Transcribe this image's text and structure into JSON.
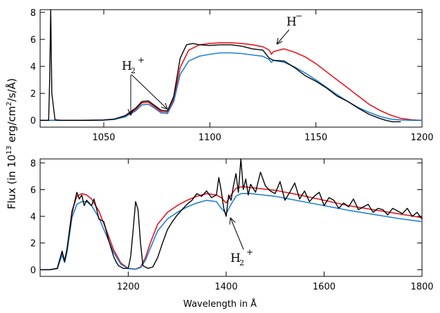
{
  "figure": {
    "ylabel_main": "Flux (in 10",
    "ylabel_exp": "13",
    "ylabel_unit_a": " erg/cm",
    "ylabel_unit_exp": "2",
    "ylabel_unit_b": "/s/Å)",
    "xlabel": "Wavelength in Å"
  },
  "colors": {
    "observed": "#000000",
    "blue_model": "#1f7fd1",
    "red_model": "#e8141e"
  },
  "chart_data": [
    {
      "type": "line",
      "panel": "top",
      "xlim": [
        1020,
        1200
      ],
      "ylim": [
        -0.5,
        8.2
      ],
      "xticks": [
        1050,
        1100,
        1150,
        1200
      ],
      "yticks": [
        0,
        2,
        4,
        6,
        8
      ],
      "grid": false,
      "series": [
        {
          "color": "red",
          "x": [
            1020,
            1040,
            1050,
            1055,
            1060,
            1065,
            1068,
            1071,
            1074,
            1077,
            1080,
            1083,
            1086,
            1090,
            1095,
            1100,
            1105,
            1110,
            1115,
            1120,
            1125,
            1128,
            1129,
            1130,
            1135,
            1140,
            1145,
            1150,
            1155,
            1160,
            1165,
            1170,
            1175,
            1180,
            1185,
            1190,
            1195,
            1200
          ],
          "y": [
            0.0,
            0.0,
            0.02,
            0.08,
            0.3,
            0.8,
            1.3,
            1.35,
            1.0,
            0.65,
            0.6,
            1.6,
            3.9,
            5.2,
            5.6,
            5.7,
            5.75,
            5.75,
            5.7,
            5.6,
            5.45,
            5.2,
            4.9,
            5.1,
            5.3,
            5.05,
            4.7,
            4.2,
            3.6,
            3.0,
            2.4,
            1.8,
            1.2,
            0.75,
            0.4,
            0.15,
            0.05,
            0.0
          ]
        },
        {
          "color": "blue",
          "x": [
            1020,
            1040,
            1050,
            1055,
            1060,
            1065,
            1068,
            1071,
            1074,
            1077,
            1080,
            1083,
            1086,
            1090,
            1095,
            1100,
            1105,
            1110,
            1115,
            1120,
            1125,
            1128,
            1129,
            1130,
            1135,
            1140,
            1145,
            1150,
            1155,
            1160,
            1165,
            1170,
            1175,
            1180,
            1185,
            1190,
            1195,
            1200
          ],
          "y": [
            0.0,
            0.0,
            0.02,
            0.07,
            0.25,
            0.7,
            1.15,
            1.2,
            0.9,
            0.55,
            0.5,
            1.4,
            3.4,
            4.4,
            4.75,
            4.9,
            5.0,
            5.0,
            4.95,
            4.85,
            4.75,
            4.5,
            4.3,
            4.45,
            4.3,
            3.95,
            3.5,
            3.0,
            2.45,
            1.9,
            1.4,
            0.95,
            0.6,
            0.3,
            0.1,
            0.03,
            0.0,
            0.0
          ]
        },
        {
          "color": "black",
          "x": [
            1020,
            1024,
            1024.5,
            1025,
            1025.5,
            1027,
            1030,
            1040,
            1050,
            1055,
            1060,
            1065,
            1068,
            1071,
            1074,
            1077,
            1080,
            1083,
            1086,
            1089,
            1092,
            1095,
            1100,
            1105,
            1110,
            1115,
            1120,
            1125,
            1128,
            1130,
            1135,
            1140,
            1145,
            1150,
            1155,
            1160,
            1165,
            1170,
            1175,
            1180,
            1183,
            1186,
            1190
          ],
          "y": [
            0.0,
            0.0,
            3.0,
            8.2,
            2.0,
            0.05,
            0.0,
            0.0,
            0.03,
            0.1,
            0.35,
            0.9,
            1.4,
            1.45,
            1.1,
            0.75,
            0.7,
            1.8,
            4.6,
            5.6,
            5.7,
            5.6,
            5.55,
            5.6,
            5.6,
            5.5,
            5.3,
            5.2,
            4.6,
            4.45,
            4.4,
            3.9,
            3.3,
            2.9,
            2.4,
            1.8,
            1.4,
            0.9,
            0.45,
            0.15,
            0.0,
            -0.1,
            -0.1
          ]
        }
      ],
      "annotations": [
        {
          "text": "H",
          "sup": "−",
          "x": 1130,
          "y": 7.2
        },
        {
          "text": "H",
          "sub": "2",
          "sup": "+",
          "x": 1058,
          "y": 3.85
        }
      ]
    },
    {
      "type": "line",
      "panel": "bottom",
      "xlim": [
        1020,
        1800
      ],
      "ylim": [
        -0.5,
        8.3
      ],
      "xticks": [
        1200,
        1400,
        1600,
        1800
      ],
      "yticks": [
        0,
        2,
        4,
        6,
        8
      ],
      "grid": false,
      "series": [
        {
          "color": "red",
          "x": [
            1020,
            1040,
            1055,
            1065,
            1070,
            1075,
            1085,
            1095,
            1105,
            1115,
            1125,
            1140,
            1155,
            1170,
            1185,
            1200,
            1215,
            1225,
            1235,
            1245,
            1260,
            1280,
            1300,
            1320,
            1340,
            1360,
            1380,
            1390,
            1400,
            1410,
            1420,
            1430,
            1440,
            1450,
            1500,
            1550,
            1600,
            1650,
            1700,
            1750,
            1800
          ],
          "y": [
            0.0,
            0.0,
            0.1,
            1.3,
            0.7,
            1.5,
            4.4,
            5.5,
            5.7,
            5.6,
            5.3,
            4.4,
            3.0,
            1.5,
            0.5,
            0.1,
            0.05,
            0.2,
            0.9,
            2.0,
            3.4,
            4.3,
            4.8,
            5.2,
            5.5,
            5.7,
            5.6,
            5.4,
            5.0,
            5.6,
            6.1,
            6.2,
            6.2,
            6.15,
            5.95,
            5.6,
            5.2,
            4.8,
            4.5,
            4.2,
            3.9
          ]
        },
        {
          "color": "blue",
          "x": [
            1020,
            1040,
            1055,
            1065,
            1070,
            1075,
            1085,
            1095,
            1105,
            1115,
            1125,
            1140,
            1155,
            1170,
            1185,
            1200,
            1215,
            1225,
            1235,
            1245,
            1260,
            1280,
            1300,
            1320,
            1340,
            1360,
            1380,
            1390,
            1400,
            1410,
            1420,
            1430,
            1440,
            1450,
            1500,
            1550,
            1600,
            1650,
            1700,
            1750,
            1800
          ],
          "y": [
            0.0,
            0.0,
            0.08,
            1.1,
            0.55,
            1.3,
            3.9,
            4.9,
            5.1,
            5.1,
            4.8,
            3.9,
            2.6,
            1.3,
            0.4,
            0.08,
            0.03,
            0.15,
            0.7,
            1.6,
            2.9,
            3.8,
            4.3,
            4.7,
            5.0,
            5.2,
            5.1,
            4.6,
            4.2,
            4.9,
            5.5,
            5.7,
            5.7,
            5.7,
            5.5,
            5.15,
            4.8,
            4.45,
            4.15,
            3.85,
            3.6
          ]
        },
        {
          "color": "black",
          "x": [
            1020,
            1040,
            1055,
            1065,
            1070,
            1075,
            1085,
            1090,
            1095,
            1100,
            1105,
            1110,
            1115,
            1120,
            1125,
            1130,
            1135,
            1140,
            1150,
            1160,
            1170,
            1175,
            1180,
            1185,
            1190,
            1200,
            1205,
            1210,
            1215,
            1220,
            1225,
            1230,
            1240,
            1250,
            1260,
            1270,
            1280,
            1290,
            1300,
            1310,
            1320,
            1330,
            1340,
            1350,
            1360,
            1370,
            1380,
            1385,
            1390,
            1395,
            1400,
            1405,
            1410,
            1415,
            1420,
            1425,
            1430,
            1435,
            1440,
            1445,
            1450,
            1460,
            1470,
            1480,
            1490,
            1500,
            1510,
            1520,
            1530,
            1540,
            1550,
            1560,
            1570,
            1580,
            1590,
            1600,
            1610,
            1620,
            1630,
            1640,
            1650,
            1660,
            1670,
            1680,
            1690,
            1700,
            1710,
            1720,
            1730,
            1740,
            1750,
            1760,
            1770,
            1780,
            1790,
            1800
          ],
          "y": [
            0.0,
            0.0,
            0.1,
            1.4,
            0.6,
            1.6,
            4.2,
            5.0,
            5.8,
            5.3,
            5.6,
            4.8,
            5.2,
            5.0,
            4.8,
            5.3,
            4.6,
            3.8,
            3.6,
            2.2,
            1.0,
            0.6,
            0.3,
            0.2,
            0.1,
            0.1,
            1.0,
            3.0,
            5.1,
            4.5,
            2.0,
            0.3,
            0.1,
            0.2,
            0.9,
            2.0,
            3.0,
            3.6,
            4.1,
            4.5,
            4.9,
            5.2,
            5.7,
            5.5,
            5.9,
            5.4,
            5.6,
            6.9,
            5.9,
            4.6,
            4.0,
            5.6,
            5.2,
            6.3,
            7.2,
            5.8,
            8.3,
            6.0,
            6.8,
            5.6,
            6.4,
            5.8,
            7.3,
            6.3,
            5.9,
            5.7,
            6.6,
            5.2,
            5.8,
            6.5,
            5.3,
            5.9,
            5.1,
            5.5,
            5.8,
            4.8,
            5.4,
            5.2,
            4.6,
            5.0,
            4.7,
            5.3,
            4.5,
            4.7,
            4.9,
            4.3,
            4.6,
            4.5,
            4.1,
            4.6,
            4.4,
            4.2,
            4.6,
            4.0,
            4.3,
            3.8
          ]
        }
      ],
      "annotations": [
        {
          "text": "H",
          "sub": "2",
          "sup": "+",
          "x": 1410,
          "y": -1.6
        }
      ]
    }
  ]
}
